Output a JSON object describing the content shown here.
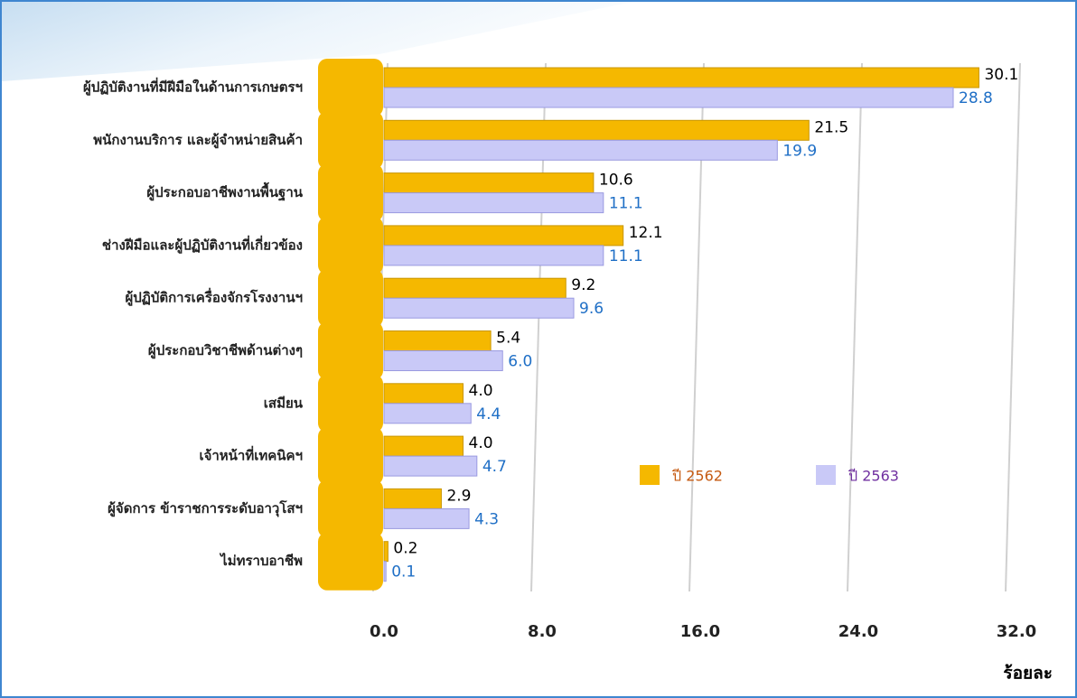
{
  "chart_data": {
    "type": "bar",
    "orientation": "horizontal",
    "x_label": "ร้อยละ",
    "categories": [
      "ผู้ปฏิบัติงานที่มีฝีมือในด้านการเกษตรฯ",
      "พนักงานบริการ  และผู้จำหน่ายสินค้า",
      "ผู้ประกอบอาชีพงานพื้นฐาน",
      "ช่างฝีมือและผู้ปฏิบัติงานที่เกี่ยวข้อง",
      "ผู้ปฏิบัติการเครื่องจักรโรงงานฯ",
      "ผู้ประกอบวิชาชีพด้านต่างๆ",
      "เสมียน",
      "เจ้าหน้าที่เทคนิคฯ",
      "ผู้จัดการ  ข้าราชการระดับอาวุโสฯ",
      "ไม่ทราบอาชีพ"
    ],
    "series": [
      {
        "name": "ปี 2562",
        "color": "#f5b800",
        "label_color": "#000000",
        "legend_color": "#c55a11",
        "values": [
          30.1,
          21.5,
          10.6,
          12.1,
          9.2,
          5.4,
          4.0,
          4.0,
          2.9,
          0.2
        ],
        "value_labels": [
          "30.1",
          "21.5",
          "10.6",
          "12.1",
          "9.2",
          "5.4",
          "4.0",
          "4.0",
          "2.9",
          "0.2"
        ]
      },
      {
        "name": "ปี 2563",
        "color": "#c9c9f7",
        "label_color": "#1f6fc6",
        "legend_color": "#7030a0",
        "values": [
          28.8,
          19.9,
          11.1,
          11.1,
          9.6,
          6.0,
          4.4,
          4.7,
          4.3,
          0.1
        ],
        "value_labels": [
          "28.8",
          "19.9",
          "11.1",
          "11.1",
          "9.6",
          "6.0",
          "4.4",
          "4.7",
          "4.3",
          "0.1"
        ]
      }
    ],
    "xlim": [
      0,
      32
    ],
    "xticks": [
      {
        "value": 0,
        "label": "0.0"
      },
      {
        "value": 8,
        "label": "8.0"
      },
      {
        "value": 16,
        "label": "16.0"
      },
      {
        "value": 24,
        "label": "24.0"
      },
      {
        "value": 32,
        "label": "32.0"
      }
    ],
    "grid": true
  }
}
